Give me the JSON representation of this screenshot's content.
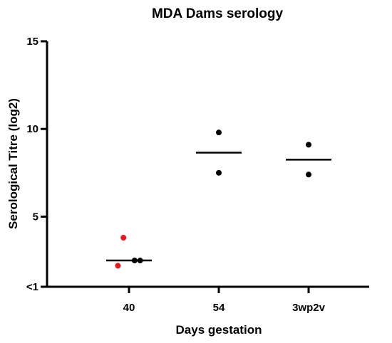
{
  "chart_data": {
    "type": "scatter",
    "title": "MDA Dams serology",
    "xlabel": "Days gestation",
    "ylabel": "Serological Titre (log2)",
    "categories": [
      "40",
      "54",
      "3wp2v"
    ],
    "ylim": [
      1,
      15
    ],
    "yticks": [
      {
        "value": 1,
        "label": "<1"
      },
      {
        "value": 5,
        "label": "5"
      },
      {
        "value": 10,
        "label": "10"
      },
      {
        "value": 15,
        "label": "15"
      }
    ],
    "grid": false,
    "legend": "none",
    "points": [
      {
        "category": "40",
        "offset": -0.12,
        "y": 2.2,
        "color": "#e8191c"
      },
      {
        "category": "40",
        "offset": -0.06,
        "y": 3.8,
        "color": "#e8191c"
      },
      {
        "category": "40",
        "offset": 0.06,
        "y": 2.5,
        "color": "#000000"
      },
      {
        "category": "40",
        "offset": 0.12,
        "y": 2.5,
        "color": "#000000"
      },
      {
        "category": "54",
        "offset": 0,
        "y": 9.8,
        "color": "#000000"
      },
      {
        "category": "54",
        "offset": 0,
        "y": 7.5,
        "color": "#000000"
      },
      {
        "category": "3wp2v",
        "offset": 0,
        "y": 9.1,
        "color": "#000000"
      },
      {
        "category": "3wp2v",
        "offset": 0,
        "y": 7.4,
        "color": "#000000"
      }
    ],
    "means": [
      {
        "category": "40",
        "y": 2.5
      },
      {
        "category": "54",
        "y": 8.65
      },
      {
        "category": "3wp2v",
        "y": 8.25
      }
    ]
  }
}
